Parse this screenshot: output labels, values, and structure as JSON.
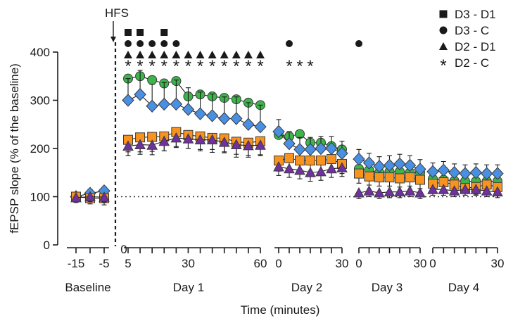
{
  "chart_data": {
    "type": "scatter",
    "title": "",
    "ylabel": "fEPSP slope (% of the baseline)",
    "xlabel": "Time (minutes)",
    "ylim": [
      0,
      420
    ],
    "yticks": [
      0,
      100,
      200,
      300,
      400
    ],
    "baseline_reference": 100,
    "hfs_label": "HFS",
    "segments": [
      {
        "id": "baseline",
        "label": "Baseline",
        "domain": [
          -18,
          -3
        ],
        "ticks": [
          -15,
          -10,
          -5
        ],
        "tick_labels": [
          "-15",
          "",
          "-5"
        ]
      },
      {
        "id": "day1",
        "label": "Day 1",
        "domain": [
          0,
          60
        ],
        "ticks": [
          5,
          10,
          15,
          20,
          25,
          30,
          35,
          40,
          45,
          50,
          55,
          60
        ],
        "tick_labels": [
          "5",
          "",
          "",
          "",
          "",
          "30",
          "",
          "",
          "",
          "",
          "",
          "60"
        ],
        "zero_label": "0"
      },
      {
        "id": "day2",
        "label": "Day 2",
        "domain": [
          0,
          30
        ],
        "ticks": [
          0,
          5,
          10,
          15,
          20,
          25,
          30
        ],
        "tick_labels": [
          "0",
          "",
          "",
          "",
          "",
          "",
          "30"
        ]
      },
      {
        "id": "day3",
        "label": "Day 3",
        "domain": [
          0,
          30
        ],
        "ticks": [
          0,
          5,
          10,
          15,
          20,
          25,
          30
        ],
        "tick_labels": [
          "0",
          "",
          "",
          "",
          "",
          "",
          "30"
        ]
      },
      {
        "id": "day4",
        "label": "Day 4",
        "domain": [
          0,
          30
        ],
        "ticks": [
          0,
          5,
          10,
          15,
          20,
          25,
          30
        ],
        "tick_labels": [
          "0",
          "",
          "",
          "",
          "",
          "",
          "30"
        ]
      }
    ],
    "series": [
      {
        "name": "C",
        "marker": "square",
        "color": "#f7931e",
        "data": {
          "baseline": {
            "x": [
              -15,
              -10,
              -5
            ],
            "y": [
              100,
              97,
              97
            ],
            "err": [
              10,
              12,
              14
            ]
          },
          "day1": {
            "x": [
              5,
              10,
              15,
              20,
              25,
              30,
              35,
              40,
              45,
              50,
              55,
              60
            ],
            "y": [
              218,
              223,
              224,
              225,
              234,
              228,
              225,
              222,
              221,
              214,
              212,
              215
            ],
            "err": [
              25,
              30,
              30,
              30,
              30,
              28,
              30,
              30,
              30,
              32,
              30,
              30
            ]
          },
          "day2": {
            "x": [
              0,
              5,
              10,
              15,
              20,
              25,
              30
            ],
            "y": [
              175,
              180,
              175,
              175,
              175,
              178,
              168
            ],
            "err": [
              22,
              22,
              22,
              22,
              22,
              22,
              20
            ]
          },
          "day3": {
            "x": [
              0,
              5,
              10,
              15,
              20,
              25,
              30
            ],
            "y": [
              148,
              142,
              140,
              140,
              138,
              140,
              135
            ],
            "err": [
              20,
              18,
              18,
              18,
              18,
              18,
              18
            ]
          },
          "day4": {
            "x": [
              0,
              5,
              10,
              15,
              20,
              25,
              30
            ],
            "y": [
              127,
              130,
              125,
              118,
              120,
              125,
              120
            ],
            "err": [
              15,
              15,
              15,
              15,
              15,
              15,
              15
            ]
          }
        }
      },
      {
        "name": "D1",
        "marker": "triangle",
        "color": "#7030a0",
        "data": {
          "baseline": {
            "x": [
              -15,
              -10,
              -5
            ],
            "y": [
              98,
              100,
              99
            ],
            "err": [
              10,
              10,
              10
            ]
          },
          "day1": {
            "x": [
              5,
              10,
              15,
              20,
              25,
              30,
              35,
              40,
              45,
              50,
              55,
              60
            ],
            "y": [
              205,
              208,
              207,
              215,
              222,
              220,
              218,
              218,
              213,
              208,
              206,
              207
            ],
            "err": [
              20,
              20,
              20,
              20,
              20,
              20,
              20,
              20,
              20,
              20,
              20,
              20
            ]
          },
          "day2": {
            "x": [
              0,
              5,
              10,
              15,
              20,
              25,
              30
            ],
            "y": [
              162,
              158,
              155,
              150,
              152,
              158,
              160
            ],
            "err": [
              18,
              18,
              18,
              18,
              18,
              18,
              18
            ]
          },
          "day3": {
            "x": [
              0,
              5,
              10,
              15,
              20,
              25,
              30
            ],
            "y": [
              108,
              112,
              108,
              110,
              110,
              112,
              108
            ],
            "err": [
              12,
              12,
              12,
              12,
              12,
              12,
              12
            ]
          },
          "day4": {
            "x": [
              0,
              5,
              10,
              15,
              20,
              25,
              30
            ],
            "y": [
              115,
              115,
              112,
              115,
              115,
              112,
              110
            ],
            "err": [
              12,
              12,
              12,
              12,
              12,
              12,
              12
            ]
          }
        }
      },
      {
        "name": "D2",
        "marker": "diamond",
        "color": "#4a90e2",
        "data": {
          "baseline": {
            "x": [
              -15,
              -10,
              -5
            ],
            "y": [
              100,
              107,
              112
            ],
            "err": [
              8,
              8,
              8
            ]
          },
          "day1": {
            "x": [
              5,
              10,
              15,
              20,
              25,
              30,
              35,
              40,
              45,
              50,
              55,
              60
            ],
            "y": [
              300,
              312,
              288,
              292,
              292,
              281,
              272,
              268,
              262,
              262,
              250,
              245
            ],
            "err": [
              45,
              50,
              45,
              45,
              50,
              45,
              45,
              45,
              45,
              45,
              45,
              45
            ]
          },
          "day2": {
            "x": [
              0,
              5,
              10,
              15,
              20,
              25,
              30
            ],
            "y": [
              235,
              210,
              198,
              198,
              200,
              200,
              190
            ],
            "err": [
              25,
              25,
              25,
              25,
              25,
              25,
              25
            ]
          },
          "day3": {
            "x": [
              0,
              5,
              10,
              15,
              20,
              25,
              30
            ],
            "y": [
              178,
              170,
              163,
              165,
              168,
              165,
              157
            ],
            "err": [
              20,
              20,
              20,
              20,
              20,
              20,
              20
            ]
          },
          "day4": {
            "x": [
              0,
              5,
              10,
              15,
              20,
              25,
              30
            ],
            "y": [
              152,
              155,
              150,
              148,
              150,
              148,
              148
            ],
            "err": [
              18,
              18,
              18,
              18,
              18,
              18,
              18
            ]
          }
        }
      },
      {
        "name": "D3",
        "marker": "circle",
        "color": "#3cb54a",
        "data": {
          "baseline": {
            "x": [],
            "y": [],
            "err": []
          },
          "day1": {
            "x": [
              5,
              10,
              15,
              20,
              25,
              30,
              35,
              40,
              45,
              50,
              55,
              60
            ],
            "y": [
              345,
              350,
              342,
              335,
              340,
              308,
              312,
              308,
              305,
              302,
              295,
              290
            ],
            "err": [
              0,
              0,
              0,
              0,
              0,
              0,
              0,
              0,
              0,
              0,
              0,
              0
            ]
          },
          "day2": {
            "x": [
              0,
              5,
              10,
              15,
              20,
              25,
              30
            ],
            "y": [
              228,
              225,
              230,
              212,
              212,
              205,
              198
            ],
            "err": [
              0,
              0,
              0,
              0,
              0,
              0,
              0
            ]
          },
          "day3": {
            "x": [
              0,
              5,
              10,
              15,
              20,
              25,
              30
            ],
            "y": [
              158,
              155,
              150,
              152,
              152,
              150,
              150
            ],
            "err": [
              0,
              0,
              0,
              0,
              0,
              0,
              0
            ]
          },
          "day4": {
            "x": [
              0,
              5,
              10,
              15,
              20,
              25,
              30
            ],
            "y": [
              137,
              135,
              133,
              132,
              132,
              132,
              132
            ],
            "err": [
              0,
              0,
              0,
              0,
              0,
              0,
              0
            ]
          }
        }
      }
    ],
    "legend": {
      "placement": "top-right",
      "entries": [
        {
          "marker": "square",
          "label": "D3 - D1"
        },
        {
          "marker": "circle",
          "label": "D3 - C"
        },
        {
          "marker": "triangle",
          "label": "D2 - D1"
        },
        {
          "marker": "asterisk",
          "label": "D2 - C"
        }
      ]
    },
    "significance": [
      {
        "comparison": "D3 - D1",
        "marker": "square",
        "segment": "day1",
        "x": [
          5,
          10,
          20
        ]
      },
      {
        "comparison": "D3 - C",
        "marker": "circle",
        "segment": "day1",
        "x": [
          5,
          10,
          15,
          20,
          25
        ]
      },
      {
        "comparison": "D3 - C",
        "marker": "circle",
        "segment": "day2",
        "x": [
          5
        ]
      },
      {
        "comparison": "D3 - C",
        "marker": "circle",
        "segment": "day3",
        "x": [
          0
        ]
      },
      {
        "comparison": "D2 - D1",
        "marker": "triangle",
        "segment": "day1",
        "x": [
          5,
          10,
          15,
          20,
          25,
          30,
          35,
          40,
          45,
          50,
          55,
          60
        ]
      },
      {
        "comparison": "D2 - C",
        "marker": "asterisk",
        "segment": "day1",
        "x": [
          5,
          10,
          15,
          20,
          25,
          30,
          35,
          40,
          45,
          50,
          55,
          60
        ]
      },
      {
        "comparison": "D2 - C",
        "marker": "asterisk",
        "segment": "day2",
        "x": [
          5,
          10,
          15
        ]
      }
    ]
  }
}
